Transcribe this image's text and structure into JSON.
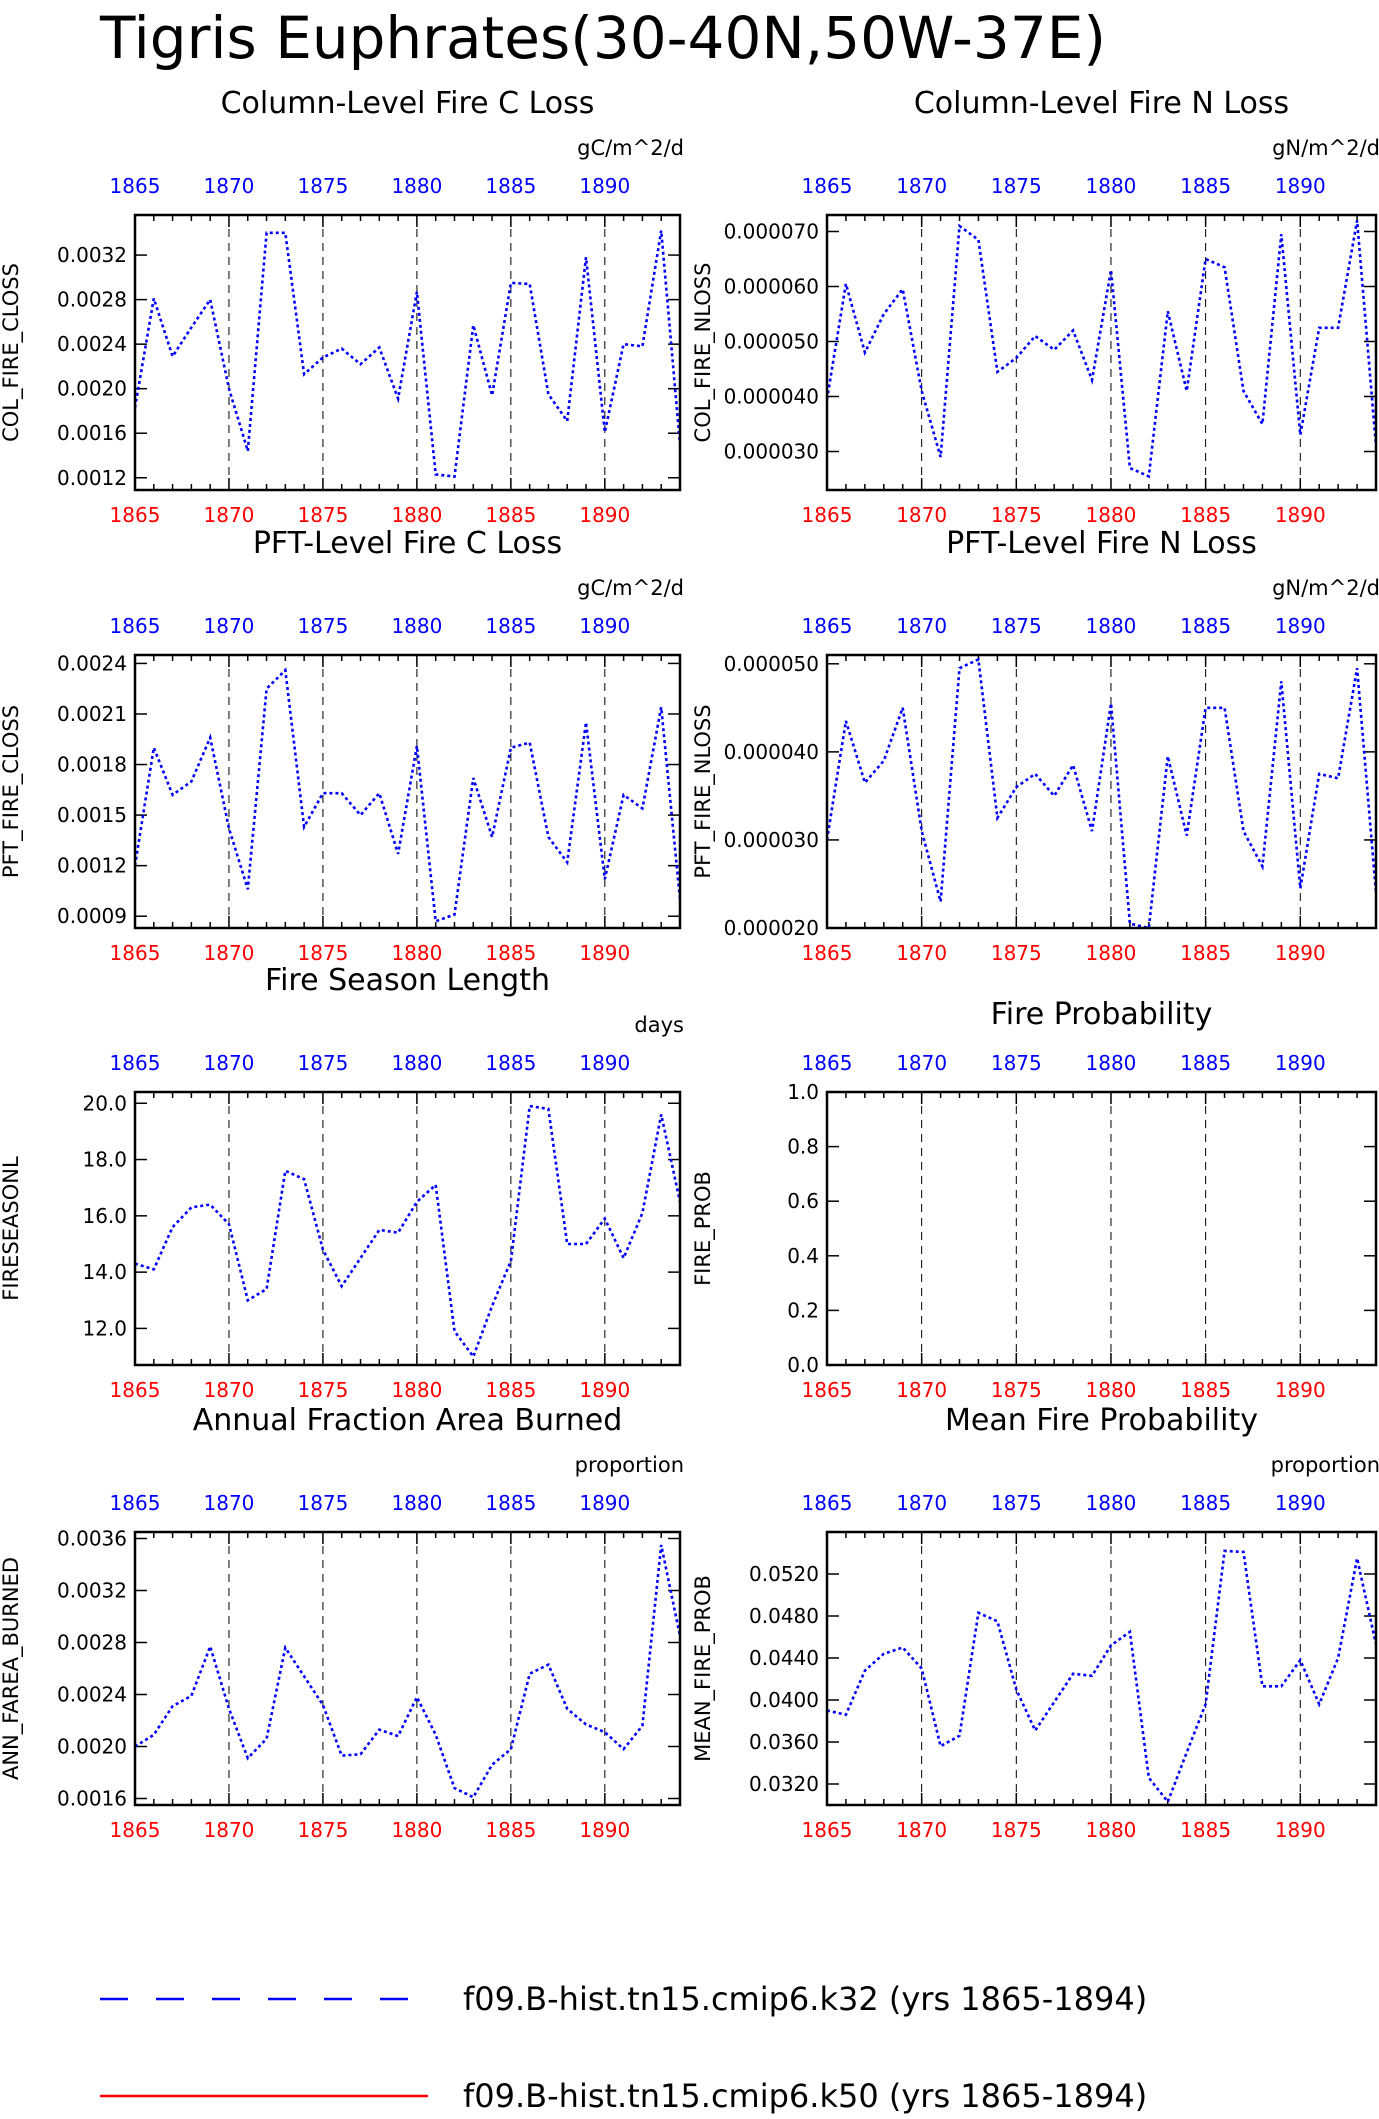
{
  "page_title": "Tigris Euphrates(30-40N,50W-37E)",
  "colors": {
    "series_k32": "#0000ff",
    "series_k50": "#ff0000",
    "bottom_axis_labels": "#ff0000",
    "top_axis_labels": "#0000ff",
    "frame": "#000000"
  },
  "legend": {
    "entries": [
      {
        "label": "f09.B-hist.tn15.cmip6.k32 (yrs 1865-1894)",
        "color": "#0000ff",
        "style": "dashed"
      },
      {
        "label": "f09.B-hist.tn15.cmip6.k50 (yrs 1865-1894)",
        "color": "#ff0000",
        "style": "solid"
      }
    ]
  },
  "chart_data": [
    {
      "type": "line",
      "title": "Column-Level Fire C Loss",
      "units": "gC/m^2/d",
      "ylabel": "COL_FIRE_CLOSS",
      "xlim": [
        1865,
        1894
      ],
      "ylim": [
        0.00109,
        0.00356
      ],
      "x_ticks": [
        "1865",
        "1870",
        "1875",
        "1880",
        "1885",
        "1890"
      ],
      "y_ticks": [
        "0.0012",
        "0.0016",
        "0.0020",
        "0.0024",
        "0.0028",
        "0.0032"
      ],
      "x": [
        1865,
        1866,
        1867,
        1868,
        1869,
        1870,
        1871,
        1872,
        1873,
        1874,
        1875,
        1876,
        1877,
        1878,
        1879,
        1880,
        1881,
        1882,
        1883,
        1884,
        1885,
        1886,
        1887,
        1888,
        1889,
        1890,
        1891,
        1892,
        1893,
        1894
      ],
      "series": [
        {
          "name": "f09.B-hist.tn15.cmip6.k32 (yrs 1865-1894)",
          "values": [
            0.00183,
            0.00281,
            0.00229,
            0.00255,
            0.0028,
            0.002,
            0.00144,
            0.0034,
            0.0034,
            0.00213,
            0.00228,
            0.00236,
            0.00222,
            0.00237,
            0.00191,
            0.00287,
            0.00123,
            0.00121,
            0.00257,
            0.00194,
            0.00295,
            0.00294,
            0.00195,
            0.00171,
            0.00318,
            0.00161,
            0.0024,
            0.00238,
            0.00342,
            0.0015
          ]
        }
      ]
    },
    {
      "type": "line",
      "title": "Column-Level Fire N Loss",
      "units": "gN/m^2/d",
      "ylabel": "COL_FIRE_NLOSS",
      "xlim": [
        1865,
        1894
      ],
      "ylim": [
        2.3e-05,
        7.3e-05
      ],
      "x_ticks": [
        "1865",
        "1870",
        "1875",
        "1880",
        "1885",
        "1890"
      ],
      "y_ticks": [
        "0.000030",
        "0.000040",
        "0.000050",
        "0.000060",
        "0.000070"
      ],
      "x": [
        1865,
        1866,
        1867,
        1868,
        1869,
        1870,
        1871,
        1872,
        1873,
        1874,
        1875,
        1876,
        1877,
        1878,
        1879,
        1880,
        1881,
        1882,
        1883,
        1884,
        1885,
        1886,
        1887,
        1888,
        1889,
        1890,
        1891,
        1892,
        1893,
        1894
      ],
      "series": [
        {
          "name": "f09.B-hist.tn15.cmip6.k32 (yrs 1865-1894)",
          "values": [
            3.95e-05,
            6.05e-05,
            4.8e-05,
            5.5e-05,
            5.95e-05,
            4.1e-05,
            2.9e-05,
            7.1e-05,
            6.85e-05,
            4.45e-05,
            4.7e-05,
            5.1e-05,
            4.85e-05,
            5.2e-05,
            4.3e-05,
            6.3e-05,
            2.7e-05,
            2.55e-05,
            5.55e-05,
            4.1e-05,
            6.5e-05,
            6.35e-05,
            4.1e-05,
            3.5e-05,
            6.95e-05,
            3.3e-05,
            5.25e-05,
            5.25e-05,
            7.2e-05,
            3.1e-05
          ]
        }
      ]
    },
    {
      "type": "line",
      "title": "PFT-Level Fire C Loss",
      "units": "gC/m^2/d",
      "ylabel": "PFT_FIRE_CLOSS",
      "xlim": [
        1865,
        1894
      ],
      "ylim": [
        0.00083,
        0.00245
      ],
      "x_ticks": [
        "1865",
        "1870",
        "1875",
        "1880",
        "1885",
        "1890"
      ],
      "y_ticks": [
        "0.0009",
        "0.0012",
        "0.0015",
        "0.0018",
        "0.0021",
        "0.0024"
      ],
      "x": [
        1865,
        1866,
        1867,
        1868,
        1869,
        1870,
        1871,
        1872,
        1873,
        1874,
        1875,
        1876,
        1877,
        1878,
        1879,
        1880,
        1881,
        1882,
        1883,
        1884,
        1885,
        1886,
        1887,
        1888,
        1889,
        1890,
        1891,
        1892,
        1893,
        1894
      ],
      "series": [
        {
          "name": "f09.B-hist.tn15.cmip6.k32 (yrs 1865-1894)",
          "values": [
            0.0012,
            0.0019,
            0.00162,
            0.0017,
            0.00196,
            0.00142,
            0.00106,
            0.00225,
            0.00236,
            0.00143,
            0.00163,
            0.00163,
            0.0015,
            0.00163,
            0.00127,
            0.00191,
            0.00087,
            0.00091,
            0.00172,
            0.00137,
            0.0019,
            0.00193,
            0.00137,
            0.00122,
            0.00205,
            0.00112,
            0.00162,
            0.00154,
            0.00214,
            0.001
          ]
        }
      ]
    },
    {
      "type": "line",
      "title": "PFT-Level Fire N Loss",
      "units": "gN/m^2/d",
      "ylabel": "PFT_FIRE_NLOSS",
      "xlim": [
        1865,
        1894
      ],
      "ylim": [
        2e-05,
        5.1e-05
      ],
      "x_ticks": [
        "1865",
        "1870",
        "1875",
        "1880",
        "1885",
        "1890"
      ],
      "y_ticks": [
        "0.000020",
        "0.000030",
        "0.000040",
        "0.000050"
      ],
      "x": [
        1865,
        1866,
        1867,
        1868,
        1869,
        1870,
        1871,
        1872,
        1873,
        1874,
        1875,
        1876,
        1877,
        1878,
        1879,
        1880,
        1881,
        1882,
        1883,
        1884,
        1885,
        1886,
        1887,
        1888,
        1889,
        1890,
        1891,
        1892,
        1893,
        1894
      ],
      "series": [
        {
          "name": "f09.B-hist.tn15.cmip6.k32 (yrs 1865-1894)",
          "values": [
            3e-05,
            4.35e-05,
            3.65e-05,
            3.9e-05,
            4.5e-05,
            3.1e-05,
            2.3e-05,
            4.95e-05,
            5.05e-05,
            3.25e-05,
            3.6e-05,
            3.75e-05,
            3.5e-05,
            3.85e-05,
            3.1e-05,
            4.55e-05,
            2.05e-05,
            2e-05,
            3.95e-05,
            3.05e-05,
            4.5e-05,
            4.5e-05,
            3.1e-05,
            2.7e-05,
            4.8e-05,
            2.45e-05,
            3.75e-05,
            3.7e-05,
            4.95e-05,
            2.4e-05
          ]
        }
      ]
    },
    {
      "type": "line",
      "title": "Fire Season Length",
      "units": "days",
      "ylabel": "FIRESEASONL",
      "xlim": [
        1865,
        1894
      ],
      "ylim": [
        10.7,
        20.4
      ],
      "x_ticks": [
        "1865",
        "1870",
        "1875",
        "1880",
        "1885",
        "1890"
      ],
      "y_ticks": [
        "12.0",
        "14.0",
        "16.0",
        "18.0",
        "20.0"
      ],
      "x": [
        1865,
        1866,
        1867,
        1868,
        1869,
        1870,
        1871,
        1872,
        1873,
        1874,
        1875,
        1876,
        1877,
        1878,
        1879,
        1880,
        1881,
        1882,
        1883,
        1884,
        1885,
        1886,
        1887,
        1888,
        1889,
        1890,
        1891,
        1892,
        1893,
        1894
      ],
      "series": [
        {
          "name": "f09.B-hist.tn15.cmip6.k32 (yrs 1865-1894)",
          "values": [
            14.3,
            14.1,
            15.6,
            16.3,
            16.4,
            15.7,
            13.0,
            13.4,
            17.6,
            17.3,
            14.8,
            13.5,
            14.5,
            15.5,
            15.4,
            16.5,
            17.1,
            11.9,
            11.0,
            12.8,
            14.4,
            19.9,
            19.8,
            15.0,
            15.0,
            15.9,
            14.5,
            16.1,
            19.6,
            16.5
          ]
        }
      ]
    },
    {
      "type": "line",
      "title": "Fire Probability",
      "units": "",
      "ylabel": "FIRE_PROB",
      "xlim": [
        1865,
        1894
      ],
      "ylim": [
        0.0,
        1.0
      ],
      "x_ticks": [
        "1865",
        "1870",
        "1875",
        "1880",
        "1885",
        "1890"
      ],
      "y_ticks": [
        "0.0",
        "0.2",
        "0.4",
        "0.6",
        "0.8",
        "1.0"
      ],
      "x": [],
      "series": []
    },
    {
      "type": "line",
      "title": "Annual Fraction Area Burned",
      "units": "proportion",
      "ylabel": "ANN_FAREA_BURNED",
      "xlim": [
        1865,
        1894
      ],
      "ylim": [
        0.00155,
        0.00365
      ],
      "x_ticks": [
        "1865",
        "1870",
        "1875",
        "1880",
        "1885",
        "1890"
      ],
      "y_ticks": [
        "0.0016",
        "0.0020",
        "0.0024",
        "0.0028",
        "0.0032",
        "0.0036"
      ],
      "x": [
        1865,
        1866,
        1867,
        1868,
        1869,
        1870,
        1871,
        1872,
        1873,
        1874,
        1875,
        1876,
        1877,
        1878,
        1879,
        1880,
        1881,
        1882,
        1883,
        1884,
        1885,
        1886,
        1887,
        1888,
        1889,
        1890,
        1891,
        1892,
        1893,
        1894
      ],
      "series": [
        {
          "name": "f09.B-hist.tn15.cmip6.k32 (yrs 1865-1894)",
          "values": [
            0.002,
            0.00209,
            0.00231,
            0.00239,
            0.00277,
            0.00229,
            0.00191,
            0.00206,
            0.00276,
            0.00254,
            0.00232,
            0.00193,
            0.00194,
            0.00213,
            0.00208,
            0.00238,
            0.00209,
            0.00168,
            0.00161,
            0.00186,
            0.00198,
            0.00256,
            0.00263,
            0.00229,
            0.00217,
            0.00211,
            0.00198,
            0.00216,
            0.00355,
            0.00285
          ]
        }
      ]
    },
    {
      "type": "line",
      "title": "Mean Fire Probability",
      "units": "proportion",
      "ylabel": "MEAN_FIRE_PROB",
      "xlim": [
        1865,
        1894
      ],
      "ylim": [
        0.03,
        0.056
      ],
      "x_ticks": [
        "1865",
        "1870",
        "1875",
        "1880",
        "1885",
        "1890"
      ],
      "y_ticks": [
        "0.0320",
        "0.0360",
        "0.0400",
        "0.0440",
        "0.0480",
        "0.0520"
      ],
      "x": [
        1865,
        1866,
        1867,
        1868,
        1869,
        1870,
        1871,
        1872,
        1873,
        1874,
        1875,
        1876,
        1877,
        1878,
        1879,
        1880,
        1881,
        1882,
        1883,
        1884,
        1885,
        1886,
        1887,
        1888,
        1889,
        1890,
        1891,
        1892,
        1893,
        1894
      ],
      "series": [
        {
          "name": "f09.B-hist.tn15.cmip6.k32 (yrs 1865-1894)",
          "values": [
            0.039,
            0.0386,
            0.0428,
            0.0444,
            0.045,
            0.043,
            0.0356,
            0.0366,
            0.0483,
            0.0475,
            0.041,
            0.0371,
            0.0398,
            0.0425,
            0.0423,
            0.0452,
            0.0465,
            0.0326,
            0.0303,
            0.035,
            0.0396,
            0.0542,
            0.0541,
            0.0413,
            0.0413,
            0.0438,
            0.0396,
            0.044,
            0.0535,
            0.0453
          ]
        }
      ]
    }
  ]
}
